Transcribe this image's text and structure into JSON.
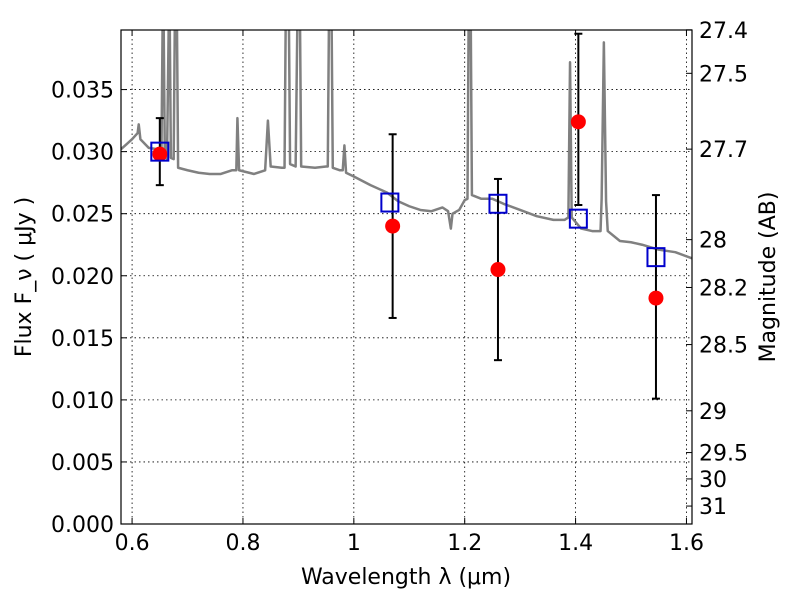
{
  "chart_data": {
    "type": "scatter",
    "title": "",
    "xlabel": "Wavelength  λ (μm)",
    "ylabel": "Flux  F_ν  ( μJy )",
    "y2label": "Magnitude (AB)",
    "xlim": [
      0.58,
      1.61
    ],
    "ylim": [
      0.0,
      0.0398
    ],
    "grid": true,
    "xticks": [
      {
        "value": 0.6,
        "label": "0.6"
      },
      {
        "value": 0.8,
        "label": "0.8"
      },
      {
        "value": 1.0,
        "label": "1"
      },
      {
        "value": 1.2,
        "label": "1.2"
      },
      {
        "value": 1.4,
        "label": "1.4"
      },
      {
        "value": 1.6,
        "label": "1.6"
      }
    ],
    "yticks": [
      {
        "value": 0.0,
        "label": "0.000"
      },
      {
        "value": 0.005,
        "label": "0.005"
      },
      {
        "value": 0.01,
        "label": "0.010"
      },
      {
        "value": 0.015,
        "label": "0.015"
      },
      {
        "value": 0.02,
        "label": "0.020"
      },
      {
        "value": 0.025,
        "label": "0.025"
      },
      {
        "value": 0.03,
        "label": "0.030"
      },
      {
        "value": 0.035,
        "label": "0.035"
      }
    ],
    "y2ticks": [
      {
        "mag": 27.4,
        "label": "27.4"
      },
      {
        "mag": 27.5,
        "label": "27.5"
      },
      {
        "mag": 27.7,
        "label": "27.7"
      },
      {
        "mag": 28.0,
        "label": "28"
      },
      {
        "mag": 28.2,
        "label": "28.2"
      },
      {
        "mag": 28.5,
        "label": "28.5"
      },
      {
        "mag": 29.0,
        "label": "29"
      },
      {
        "mag": 29.5,
        "label": "29.5"
      },
      {
        "mag": 30.0,
        "label": "30"
      },
      {
        "mag": 31.0,
        "label": "31"
      }
    ],
    "series": [
      {
        "kind": "line",
        "color": "#808080",
        "points": [
          [
            0.58,
            0.0302
          ],
          [
            0.6,
            0.031
          ],
          [
            0.61,
            0.0315
          ],
          [
            0.612,
            0.0322
          ],
          [
            0.615,
            0.031
          ],
          [
            0.63,
            0.0303
          ],
          [
            0.645,
            0.0302
          ],
          [
            0.653,
            0.0302
          ],
          [
            0.655,
            0.04
          ],
          [
            0.657,
            0.04
          ],
          [
            0.659,
            0.0298
          ],
          [
            0.663,
            0.0294
          ],
          [
            0.666,
            0.04
          ],
          [
            0.668,
            0.04
          ],
          [
            0.67,
            0.0295
          ],
          [
            0.675,
            0.0294
          ],
          [
            0.677,
            0.04
          ],
          [
            0.681,
            0.04
          ],
          [
            0.683,
            0.0287
          ],
          [
            0.7,
            0.0285
          ],
          [
            0.72,
            0.0283
          ],
          [
            0.74,
            0.0282
          ],
          [
            0.76,
            0.0282
          ],
          [
            0.78,
            0.0285
          ],
          [
            0.788,
            0.0285
          ],
          [
            0.79,
            0.0327
          ],
          [
            0.793,
            0.0285
          ],
          [
            0.82,
            0.0282
          ],
          [
            0.84,
            0.0285
          ],
          [
            0.845,
            0.0325
          ],
          [
            0.85,
            0.0288
          ],
          [
            0.87,
            0.0287
          ],
          [
            0.875,
            0.0287
          ],
          [
            0.877,
            0.04
          ],
          [
            0.883,
            0.04
          ],
          [
            0.885,
            0.029
          ],
          [
            0.895,
            0.0288
          ],
          [
            0.898,
            0.04
          ],
          [
            0.903,
            0.04
          ],
          [
            0.905,
            0.0288
          ],
          [
            0.93,
            0.0287
          ],
          [
            0.95,
            0.0288
          ],
          [
            0.953,
            0.0288
          ],
          [
            0.955,
            0.04
          ],
          [
            0.96,
            0.04
          ],
          [
            0.962,
            0.0287
          ],
          [
            0.975,
            0.0285
          ],
          [
            0.98,
            0.0285
          ],
          [
            0.983,
            0.0305
          ],
          [
            0.986,
            0.0283
          ],
          [
            1.0,
            0.028
          ],
          [
            1.03,
            0.0273
          ],
          [
            1.06,
            0.0267
          ],
          [
            1.08,
            0.026
          ],
          [
            1.1,
            0.0256
          ],
          [
            1.12,
            0.0253
          ],
          [
            1.14,
            0.0252
          ],
          [
            1.16,
            0.0255
          ],
          [
            1.17,
            0.0252
          ],
          [
            1.175,
            0.0238
          ],
          [
            1.178,
            0.025
          ],
          [
            1.19,
            0.0253
          ],
          [
            1.2,
            0.0261
          ],
          [
            1.205,
            0.0262
          ],
          [
            1.207,
            0.04
          ],
          [
            1.211,
            0.04
          ],
          [
            1.213,
            0.0265
          ],
          [
            1.23,
            0.0262
          ],
          [
            1.25,
            0.0262
          ],
          [
            1.27,
            0.0258
          ],
          [
            1.3,
            0.0253
          ],
          [
            1.33,
            0.0248
          ],
          [
            1.36,
            0.0245
          ],
          [
            1.38,
            0.0245
          ],
          [
            1.387,
            0.0247
          ],
          [
            1.39,
            0.0372
          ],
          [
            1.393,
            0.0247
          ],
          [
            1.41,
            0.0238
          ],
          [
            1.43,
            0.0236
          ],
          [
            1.445,
            0.0236
          ],
          [
            1.447,
            0.0262
          ],
          [
            1.451,
            0.0388
          ],
          [
            1.455,
            0.026
          ],
          [
            1.458,
            0.0236
          ],
          [
            1.48,
            0.0228
          ],
          [
            1.5,
            0.0227
          ],
          [
            1.52,
            0.0225
          ],
          [
            1.55,
            0.0221
          ],
          [
            1.58,
            0.0219
          ],
          [
            1.61,
            0.0214
          ]
        ]
      },
      {
        "kind": "points",
        "marker": "circle",
        "color": "#ff0000",
        "points": [
          {
            "x": 0.65,
            "y": 0.0298,
            "yerr_low": 0.0273,
            "yerr_high": 0.0327
          },
          {
            "x": 1.07,
            "y": 0.024,
            "yerr_low": 0.0166,
            "yerr_high": 0.0314
          },
          {
            "x": 1.26,
            "y": 0.0205,
            "yerr_low": 0.0132,
            "yerr_high": 0.0278
          },
          {
            "x": 1.405,
            "y": 0.0324,
            "yerr_low": 0.0257,
            "yerr_high": 0.0395
          },
          {
            "x": 1.545,
            "y": 0.0182,
            "yerr_low": 0.0101,
            "yerr_high": 0.0265
          }
        ]
      },
      {
        "kind": "points",
        "marker": "square-open",
        "color": "#0000cc",
        "points": [
          {
            "x": 0.65,
            "y": 0.03
          },
          {
            "x": 1.065,
            "y": 0.0259
          },
          {
            "x": 1.26,
            "y": 0.0258
          },
          {
            "x": 1.405,
            "y": 0.0246
          },
          {
            "x": 1.545,
            "y": 0.0215
          }
        ]
      }
    ]
  }
}
